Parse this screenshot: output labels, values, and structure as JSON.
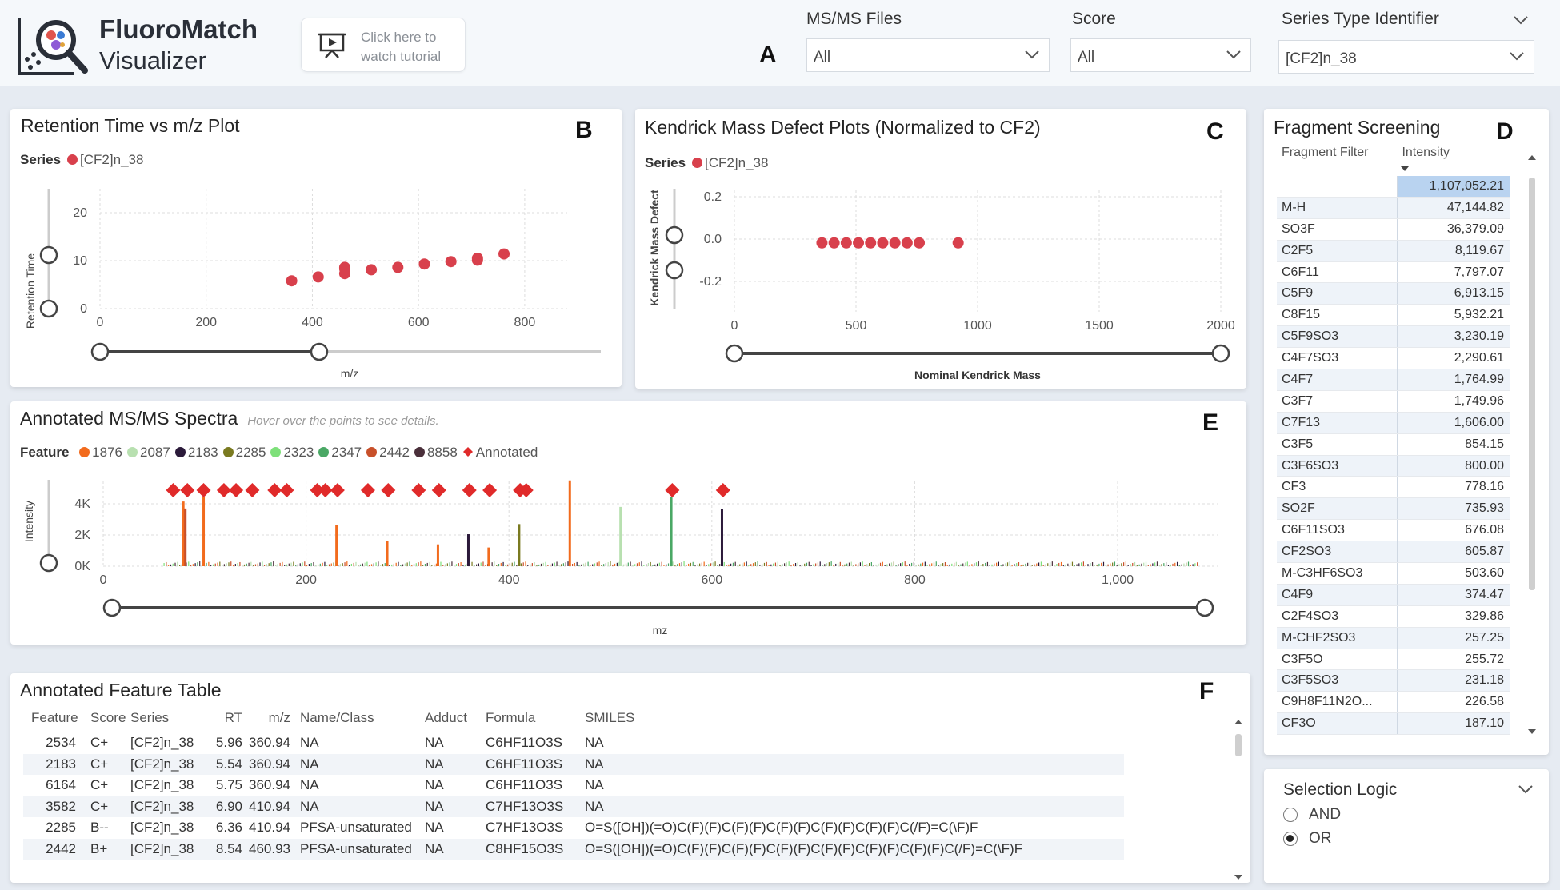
{
  "header": {
    "app_title": "FluoroMatch",
    "app_subtitle": "Visualizer",
    "tutorial_text": "Click here to watch tutorial",
    "letter": "A",
    "filters": [
      {
        "label": "MS/MS Files",
        "value": "All"
      },
      {
        "label": "Score",
        "value": "All"
      },
      {
        "label": "Series Type Identifier",
        "value": "[CF2]n_38"
      }
    ]
  },
  "colors": {
    "series_red": "#d8404c",
    "annotated_red": "#e02a2a",
    "accent_blue": "#b9d3f0"
  },
  "retention_plot": {
    "title": "Retention Time vs m/z Plot",
    "letter": "B",
    "series_label": "Series",
    "series_name": "[CF2]n_38",
    "xlabel": "m/z",
    "ylabel": "Retention Time",
    "x_ticks": [
      "0",
      "200",
      "400",
      "600",
      "800"
    ],
    "y_ticks": [
      "20",
      "10",
      "0"
    ]
  },
  "kendrick_plot": {
    "title": "Kendrick Mass Defect Plots (Normalized to CF2)",
    "letter": "C",
    "series_label": "Series",
    "series_name": "[CF2]n_38",
    "xlabel": "Nominal Kendrick Mass",
    "ylabel": "Kendrick Mass Defect",
    "x_ticks": [
      "0",
      "500",
      "1000",
      "1500",
      "2000"
    ],
    "y_ticks": [
      "0.2",
      "0.0",
      "-0.2"
    ]
  },
  "spectra_plot": {
    "title": "Annotated MS/MS Spectra",
    "hint": "Hover over the points to see details.",
    "letter": "E",
    "legend_label": "Feature",
    "features": [
      {
        "name": "1876",
        "color": "#f26b1d"
      },
      {
        "name": "2087",
        "color": "#b8e0b0"
      },
      {
        "name": "2183",
        "color": "#2b1a3a"
      },
      {
        "name": "2285",
        "color": "#7a7a20"
      },
      {
        "name": "2323",
        "color": "#7ee07a"
      },
      {
        "name": "2347",
        "color": "#4aa865"
      },
      {
        "name": "2442",
        "color": "#c8502a"
      },
      {
        "name": "8858",
        "color": "#4a2f3a"
      }
    ],
    "annotated_label": "Annotated",
    "xlabel": "mz",
    "ylabel": "Intensity",
    "x_ticks": [
      "0",
      "200",
      "400",
      "600",
      "800",
      "1,000"
    ],
    "y_ticks": [
      "4K",
      "2K",
      "0K"
    ]
  },
  "fragment_screening": {
    "title": "Fragment Screening",
    "letter": "D",
    "col_filter": "Fragment Filter",
    "col_intensity": "Intensity",
    "rows": [
      {
        "name": "",
        "value": "1,107,052.21"
      },
      {
        "name": "M-H",
        "value": "47,144.82"
      },
      {
        "name": "SO3F",
        "value": "36,379.09"
      },
      {
        "name": "C2F5",
        "value": "8,119.67"
      },
      {
        "name": "C6F11",
        "value": "7,797.07"
      },
      {
        "name": "C5F9",
        "value": "6,913.15"
      },
      {
        "name": "C8F15",
        "value": "5,932.21"
      },
      {
        "name": "C5F9SO3",
        "value": "3,230.19"
      },
      {
        "name": "C4F7SO3",
        "value": "2,290.61"
      },
      {
        "name": "C4F7",
        "value": "1,764.99"
      },
      {
        "name": "C3F7",
        "value": "1,749.96"
      },
      {
        "name": "C7F13",
        "value": "1,606.00"
      },
      {
        "name": "C3F5",
        "value": "854.15"
      },
      {
        "name": "C3F6SO3",
        "value": "800.00"
      },
      {
        "name": "CF3",
        "value": "778.16"
      },
      {
        "name": "SO2F",
        "value": "735.93"
      },
      {
        "name": "C6F11SO3",
        "value": "676.08"
      },
      {
        "name": "CF2SO3",
        "value": "605.87"
      },
      {
        "name": "M-C3HF6SO3",
        "value": "503.60"
      },
      {
        "name": "C4F9",
        "value": "374.47"
      },
      {
        "name": "C2F4SO3",
        "value": "329.86"
      },
      {
        "name": "M-CHF2SO3",
        "value": "257.25"
      },
      {
        "name": "C3F5O",
        "value": "255.72"
      },
      {
        "name": "C3F5SO3",
        "value": "231.18"
      },
      {
        "name": "C9H8F11N2O...",
        "value": "226.58"
      },
      {
        "name": "CF3O",
        "value": "187.10"
      }
    ]
  },
  "feature_table": {
    "title": "Annotated Feature Table",
    "letter": "F",
    "columns": [
      "Feature",
      "Score",
      "Series",
      "RT",
      "m/z",
      "Name/Class",
      "Adduct",
      "Formula",
      "SMILES"
    ],
    "rows": [
      [
        "2534",
        "C+",
        "[CF2]n_38",
        "5.96",
        "360.94",
        "NA",
        "NA",
        "C6HF11O3S",
        "NA"
      ],
      [
        "2183",
        "C+",
        "[CF2]n_38",
        "5.54",
        "360.94",
        "NA",
        "NA",
        "C6HF11O3S",
        "NA"
      ],
      [
        "6164",
        "C+",
        "[CF2]n_38",
        "5.75",
        "360.94",
        "NA",
        "NA",
        "C6HF11O3S",
        "NA"
      ],
      [
        "3582",
        "C+",
        "[CF2]n_38",
        "6.90",
        "410.94",
        "NA",
        "NA",
        "C7HF13O3S",
        "NA"
      ],
      [
        "2285",
        "B--",
        "[CF2]n_38",
        "6.36",
        "410.94",
        "PFSA-unsaturated",
        "NA",
        "C7HF13O3S",
        "O=S([OH])(=O)C(F)(F)C(F)(F)C(F)(F)C(F)(F)C(F)(F)C(/F)=C(\\F)F"
      ],
      [
        "2442",
        "B+",
        "[CF2]n_38",
        "8.54",
        "460.93",
        "PFSA-unsaturated",
        "NA",
        "C8HF15O3S",
        "O=S([OH])(=O)C(F)(F)C(F)(F)C(F)(F)C(F)(F)C(F)(F)C(F)(F)C(/F)=C(\\F)F"
      ]
    ]
  },
  "selection_logic": {
    "title": "Selection Logic",
    "options": [
      {
        "label": "AND",
        "selected": false
      },
      {
        "label": "OR",
        "selected": true
      }
    ]
  },
  "chart_data": [
    {
      "type": "scatter",
      "title": "Retention Time vs m/z Plot",
      "xlabel": "m/z",
      "ylabel": "Retention Time",
      "xlim": [
        0,
        880
      ],
      "ylim": [
        0,
        25
      ],
      "series": [
        {
          "name": "[CF2]n_38",
          "points": [
            [
              361,
              5.8
            ],
            [
              411,
              6.6
            ],
            [
              461,
              7.3
            ],
            [
              461,
              8.3
            ],
            [
              461,
              8.6
            ],
            [
              511,
              8.1
            ],
            [
              561,
              8.6
            ],
            [
              611,
              9.3
            ],
            [
              661,
              9.8
            ],
            [
              711,
              10.1
            ],
            [
              711,
              10.5
            ],
            [
              761,
              11.4
            ]
          ]
        }
      ]
    },
    {
      "type": "scatter",
      "title": "Kendrick Mass Defect Plots (Normalized to CF2)",
      "xlabel": "Nominal Kendrick Mass",
      "ylabel": "Kendrick Mass Defect",
      "xlim": [
        0,
        2000
      ],
      "ylim": [
        -0.3,
        0.3
      ],
      "series": [
        {
          "name": "[CF2]n_38",
          "points": [
            [
              360,
              -0.018
            ],
            [
              410,
              -0.018
            ],
            [
              460,
              -0.018
            ],
            [
              510,
              -0.018
            ],
            [
              560,
              -0.018
            ],
            [
              610,
              -0.018
            ],
            [
              660,
              -0.018
            ],
            [
              710,
              -0.018
            ],
            [
              760,
              -0.018
            ],
            [
              920,
              -0.018
            ]
          ]
        }
      ]
    },
    {
      "type": "bar",
      "title": "Annotated MS/MS Spectra",
      "xlabel": "mz",
      "ylabel": "Intensity",
      "xlim": [
        0,
        1080
      ],
      "ylim": [
        0,
        5000
      ],
      "peaks": [
        {
          "mz": 79,
          "intensity": 4150,
          "color": "#f26b1d"
        },
        {
          "mz": 81,
          "intensity": 3700,
          "color": "#c8502a"
        },
        {
          "mz": 99,
          "intensity": 4450,
          "color": "#f26b1d"
        },
        {
          "mz": 230,
          "intensity": 2650,
          "color": "#f26b1d"
        },
        {
          "mz": 280,
          "intensity": 1600,
          "color": "#f26b1d"
        },
        {
          "mz": 330,
          "intensity": 1400,
          "color": "#f26b1d"
        },
        {
          "mz": 360,
          "intensity": 2050,
          "color": "#2b1a3a"
        },
        {
          "mz": 380,
          "intensity": 1200,
          "color": "#f26b1d"
        },
        {
          "mz": 410,
          "intensity": 2700,
          "color": "#7a7a20"
        },
        {
          "mz": 460,
          "intensity": 5500,
          "color": "#f26b1d"
        },
        {
          "mz": 510,
          "intensity": 3800,
          "color": "#b8e0b0"
        },
        {
          "mz": 560,
          "intensity": 4450,
          "color": "#4aa865"
        },
        {
          "mz": 610,
          "intensity": 3650,
          "color": "#2b1a3a"
        }
      ],
      "annotated_mz": [
        69,
        83,
        99,
        119,
        131,
        147,
        169,
        181,
        211,
        219,
        231,
        261,
        281,
        311,
        331,
        361,
        381,
        411,
        417,
        561,
        611
      ]
    }
  ]
}
